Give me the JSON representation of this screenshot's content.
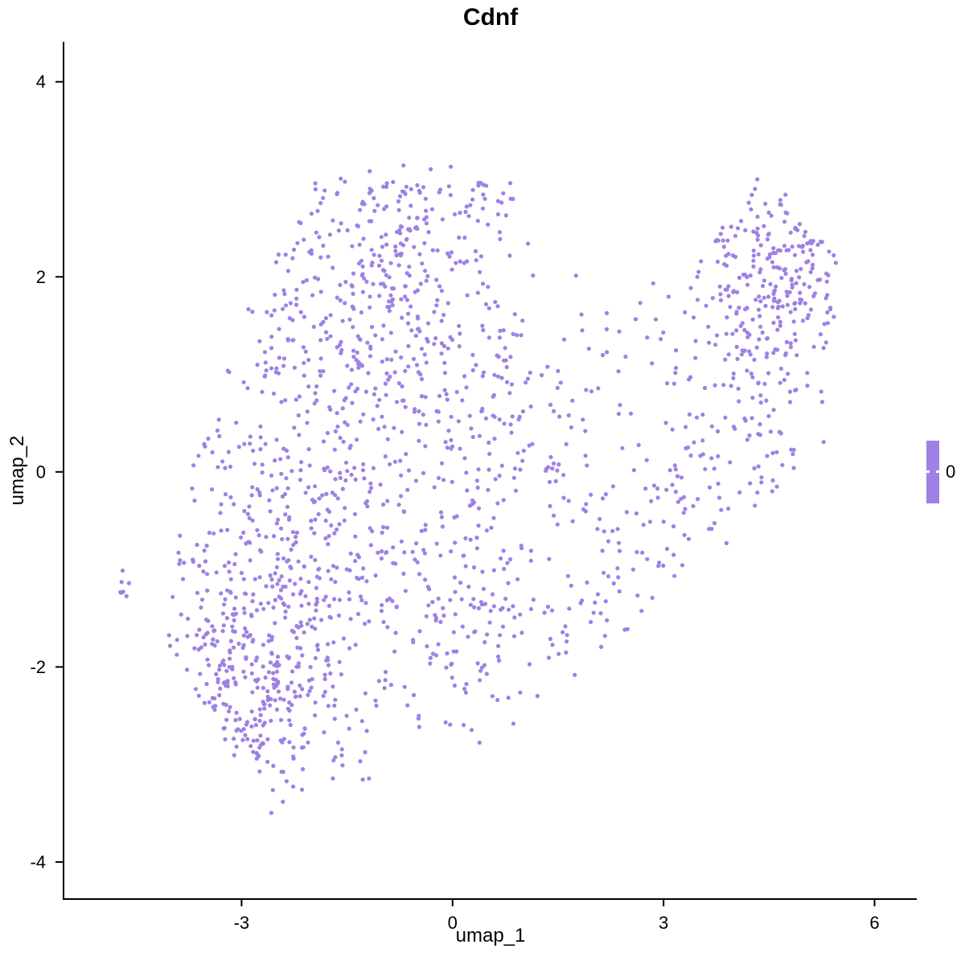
{
  "title": "Cdnf",
  "axes": {
    "x": {
      "label": "umap_1",
      "tick_labels": [
        "-3",
        "0",
        "3",
        "6"
      ],
      "tick_values": [
        -3,
        0,
        3,
        6
      ]
    },
    "y": {
      "label": "umap_2",
      "tick_labels": [
        "4",
        "2",
        "0",
        "-2",
        "-4"
      ],
      "tick_values": [
        4,
        2,
        0,
        -2,
        -4
      ]
    }
  },
  "legend": {
    "label": "0",
    "position": "right"
  },
  "colors": {
    "point": "#9E81E4",
    "legend_bar": "#9E81E4",
    "axis_line": "#000000",
    "text": "#000000",
    "background": "#ffffff"
  },
  "chart_data": {
    "type": "scatter",
    "title": "Cdnf",
    "xlabel": "umap_1",
    "ylabel": "umap_2",
    "xlim": [
      -5.52,
      6.6
    ],
    "ylim": [
      -4.38,
      4.41
    ],
    "x_ticks": [
      -3,
      0,
      3,
      6
    ],
    "y_ticks": [
      4,
      2,
      0,
      -2,
      -4
    ],
    "grid": false,
    "legend_position": "right",
    "legend_values": [
      0
    ],
    "point_color": "#9E81E4",
    "point_radius_px": 2.6,
    "point_count": 1897,
    "generator": {
      "seed": 20,
      "clusters": [
        {
          "type": "gauss",
          "n": 300,
          "cx": -2.85,
          "cy": -2.25,
          "sx": 0.72,
          "sy": 0.55
        },
        {
          "type": "gauss",
          "n": 270,
          "cx": -2.55,
          "cy": -0.7,
          "sx": 0.85,
          "sy": 0.75
        },
        {
          "type": "gauss",
          "n": 300,
          "cx": -1.35,
          "cy": 1.7,
          "sx": 1.0,
          "sy": 0.7
        },
        {
          "type": "gauss",
          "n": 90,
          "cx": -0.4,
          "cy": 2.55,
          "sx": 0.8,
          "sy": 0.3
        },
        {
          "type": "gauss",
          "n": 210,
          "cx": -0.3,
          "cy": 0.2,
          "sx": 1.0,
          "sy": 0.85
        },
        {
          "type": "gauss",
          "n": 150,
          "cx": 0.25,
          "cy": -1.6,
          "sx": 0.95,
          "sy": 0.6
        },
        {
          "type": "gauss",
          "n": 100,
          "cx": 1.4,
          "cy": 0.5,
          "sx": 0.85,
          "sy": 0.85
        },
        {
          "type": "chain",
          "n": 115,
          "x1": 2.0,
          "y1": -1.35,
          "x2": 4.6,
          "y2": 0.7,
          "w": 0.42
        },
        {
          "type": "gauss",
          "n": 185,
          "cx": 4.3,
          "cy": 1.55,
          "sx": 0.7,
          "sy": 0.7
        },
        {
          "type": "gauss",
          "n": 115,
          "cx": 4.85,
          "cy": 2.35,
          "sx": 0.42,
          "sy": 0.4
        },
        {
          "type": "gauss",
          "n": 7,
          "cx": -4.68,
          "cy": -1.22,
          "sx": 0.05,
          "sy": 0.07,
          "exempt": true
        },
        {
          "type": "uniform",
          "n": 55,
          "x1": -4.2,
          "y1": -3.3,
          "x2": 5.2,
          "y2": 3.0
        }
      ],
      "shape": {
        "top_max": 3.15,
        "bottom_min": -3.55,
        "right_max": 5.45,
        "br_line": {
          "m": 0.625,
          "b": -3.25
        },
        "bl_line": {
          "m": -1.19,
          "b": -6.6
        },
        "left_lower": {
          "x0": -4.1,
          "yref": -2.0,
          "k": 0.15
        },
        "left_upper": {
          "x0": -3.7,
          "yref": 0.5,
          "k": 0.68
        },
        "top_gap": {
          "x1": 1.7,
          "x2": 3.3,
          "y": 2.05
        },
        "right_top": {
          "cx": 4.45,
          "ymax": 3.15,
          "k": 0.95
        },
        "left_top_slope": {
          "x0": 0.8,
          "ymax": 3.2,
          "k": 0.75
        }
      }
    }
  }
}
